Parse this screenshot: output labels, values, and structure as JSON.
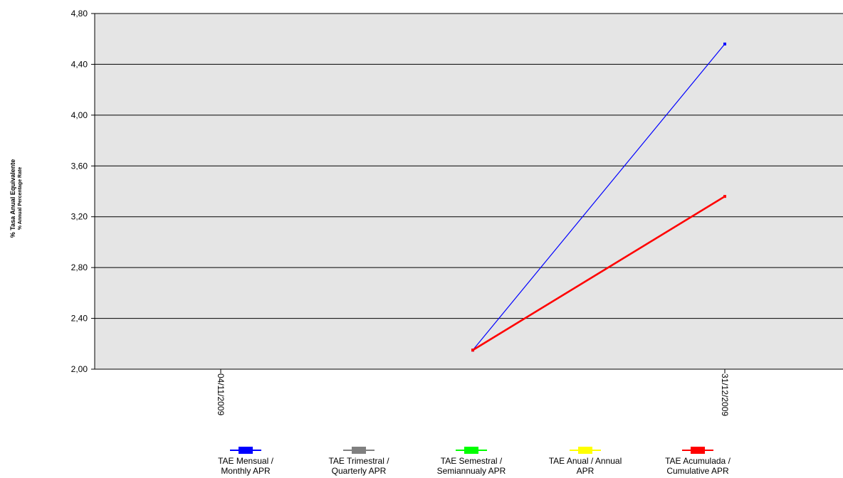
{
  "chart_data": {
    "type": "line",
    "ylabel": "% Tasa Anual Equivalente",
    "ylabel_sub": "% Annual Percentage Rate",
    "ylim": [
      2.0,
      4.8
    ],
    "yticks": [
      "2,00",
      "2,40",
      "2,80",
      "3,20",
      "3,60",
      "4,00",
      "4,40",
      "4,80"
    ],
    "ytick_values": [
      2.0,
      2.4,
      2.8,
      3.2,
      3.6,
      4.0,
      4.4,
      4.8
    ],
    "x_tick_labels": [
      "04/11/2009",
      "31/12/2009"
    ],
    "grid": true,
    "legend_position": "bottom",
    "series": [
      {
        "name_line1": "TAE Mensual /",
        "name_line2": "Monthly APR",
        "color": "#0000ff",
        "x": [
          0.5,
          1.0
        ],
        "y": [
          2.15,
          4.56
        ]
      },
      {
        "name_line1": "TAE Trimestral /",
        "name_line2": "Quarterly APR",
        "color": "#808080",
        "x": [],
        "y": []
      },
      {
        "name_line1": "TAE Semestral /",
        "name_line2": "Semiannualy APR",
        "color": "#00ff00",
        "x": [],
        "y": []
      },
      {
        "name_line1": "TAE Anual / Annual",
        "name_line2": "APR",
        "color": "#ffff00",
        "x": [],
        "y": []
      },
      {
        "name_line1": "TAE Acumulada /",
        "name_line2": "Cumulative APR",
        "color": "#ff0000",
        "x": [
          0.5,
          1.0
        ],
        "y": [
          2.15,
          3.36
        ]
      }
    ]
  }
}
